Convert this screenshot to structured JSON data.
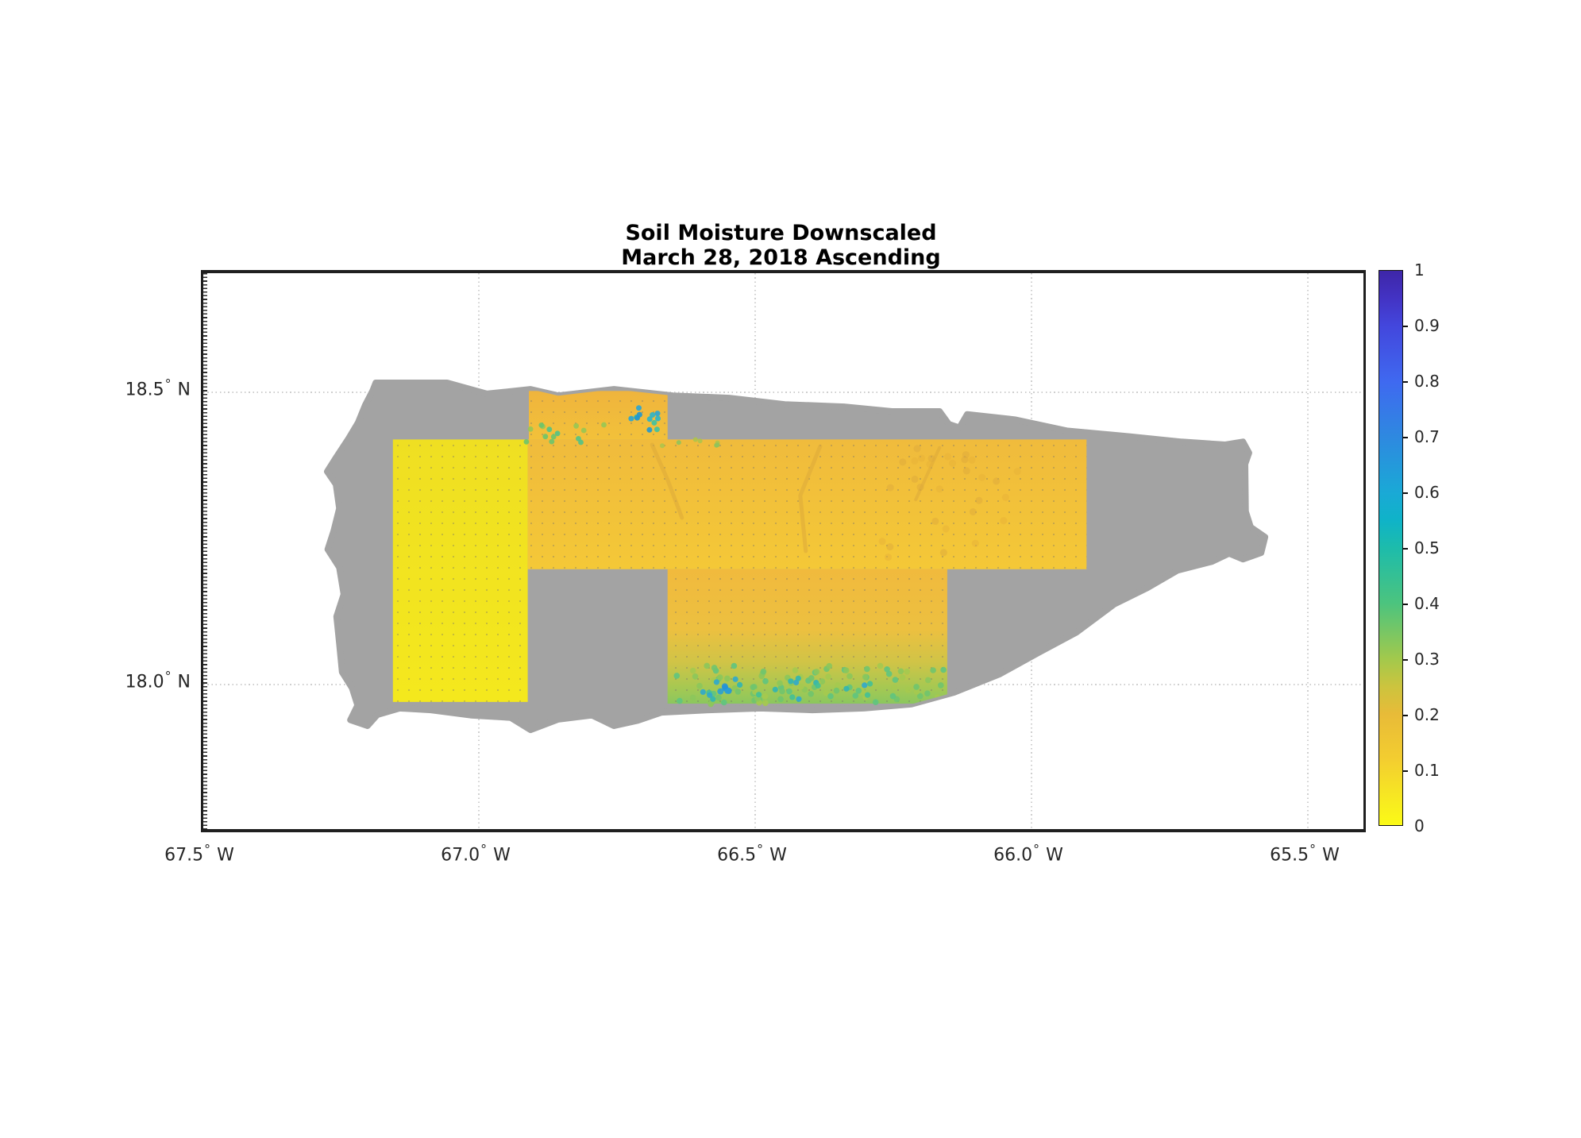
{
  "figure": {
    "title_line1": "Soil Moisture Downscaled",
    "title_line2": "March 28, 2018 Ascending"
  },
  "axes": {
    "x_ticks": [
      {
        "num": "67.5",
        "dir": "W",
        "lon": -67.5
      },
      {
        "num": "67.0",
        "dir": "W",
        "lon": -67.0
      },
      {
        "num": "66.5",
        "dir": "W",
        "lon": -66.5
      },
      {
        "num": "66.0",
        "dir": "W",
        "lon": -66.0
      },
      {
        "num": "65.5",
        "dir": "W",
        "lon": -65.5
      }
    ],
    "y_ticks": [
      {
        "num": "18.5",
        "dir": "N",
        "lat": 18.5
      },
      {
        "num": "18.0",
        "dir": "N",
        "lat": 18.0
      }
    ],
    "grid_style": "dotted",
    "grid_color": "#cfcfcf"
  },
  "colorbar": {
    "min": 0,
    "max": 1,
    "ticks": [
      {
        "label": "1",
        "v": 1.0
      },
      {
        "label": "0.9",
        "v": 0.9
      },
      {
        "label": "0.8",
        "v": 0.8
      },
      {
        "label": "0.7",
        "v": 0.7
      },
      {
        "label": "0.6",
        "v": 0.6
      },
      {
        "label": "0.5",
        "v": 0.5
      },
      {
        "label": "0.4",
        "v": 0.4
      },
      {
        "label": "0.3",
        "v": 0.3
      },
      {
        "label": "0.2",
        "v": 0.2
      },
      {
        "label": "0.1",
        "v": 0.1
      },
      {
        "label": "0",
        "v": 0.0
      }
    ],
    "gradient": [
      {
        "v": 1.0,
        "c": "#3e26a8"
      },
      {
        "v": 0.95,
        "c": "#4333c4"
      },
      {
        "v": 0.9,
        "c": "#4347dd"
      },
      {
        "v": 0.8,
        "c": "#3f69f0"
      },
      {
        "v": 0.7,
        "c": "#2e89e0"
      },
      {
        "v": 0.6,
        "c": "#1aa9d6"
      },
      {
        "v": 0.55,
        "c": "#0fb3c8"
      },
      {
        "v": 0.5,
        "c": "#1dbcab"
      },
      {
        "v": 0.4,
        "c": "#4cc47e"
      },
      {
        "v": 0.3,
        "c": "#a2c94c"
      },
      {
        "v": 0.25,
        "c": "#ccc43e"
      },
      {
        "v": 0.2,
        "c": "#e8bb38"
      },
      {
        "v": 0.12,
        "c": "#f3cd30"
      },
      {
        "v": 0.05,
        "c": "#f7e822"
      },
      {
        "v": 0.0,
        "c": "#fbfa16"
      }
    ]
  },
  "chart_data": {
    "type": "heatmap",
    "title": "Soil Moisture Downscaled",
    "subtitle": "March 28, 2018 Ascending",
    "value_range_shown": [
      0,
      1
    ],
    "lon_extent": [
      -67.503,
      -65.403
    ],
    "lat_extent": [
      17.753,
      18.702
    ],
    "nodata_island_color": "#a3a3a3",
    "island_outline_lonlat": [
      [
        -67.185,
        18.515
      ],
      [
        -67.056,
        18.515
      ],
      [
        -66.984,
        18.496
      ],
      [
        -66.905,
        18.504
      ],
      [
        -66.855,
        18.493
      ],
      [
        -66.754,
        18.504
      ],
      [
        -66.647,
        18.493
      ],
      [
        -66.546,
        18.489
      ],
      [
        -66.445,
        18.478
      ],
      [
        -66.338,
        18.474
      ],
      [
        -66.251,
        18.466
      ],
      [
        -66.165,
        18.466
      ],
      [
        -66.148,
        18.444
      ],
      [
        -66.129,
        18.438
      ],
      [
        -66.115,
        18.461
      ],
      [
        -66.029,
        18.452
      ],
      [
        -65.935,
        18.433
      ],
      [
        -65.82,
        18.423
      ],
      [
        -65.727,
        18.414
      ],
      [
        -65.648,
        18.409
      ],
      [
        -65.616,
        18.414
      ],
      [
        -65.605,
        18.395
      ],
      [
        -65.612,
        18.376
      ],
      [
        -65.611,
        18.295
      ],
      [
        -65.602,
        18.268
      ],
      [
        -65.576,
        18.251
      ],
      [
        -65.583,
        18.224
      ],
      [
        -65.616,
        18.213
      ],
      [
        -65.641,
        18.223
      ],
      [
        -65.672,
        18.209
      ],
      [
        -65.734,
        18.194
      ],
      [
        -65.789,
        18.164
      ],
      [
        -65.849,
        18.136
      ],
      [
        -65.917,
        18.088
      ],
      [
        -65.986,
        18.053
      ],
      [
        -66.057,
        18.016
      ],
      [
        -66.139,
        17.985
      ],
      [
        -66.216,
        17.965
      ],
      [
        -66.302,
        17.958
      ],
      [
        -66.395,
        17.955
      ],
      [
        -66.489,
        17.958
      ],
      [
        -66.582,
        17.955
      ],
      [
        -66.668,
        17.951
      ],
      [
        -66.711,
        17.937
      ],
      [
        -66.754,
        17.928
      ],
      [
        -66.794,
        17.946
      ],
      [
        -66.855,
        17.939
      ],
      [
        -66.905,
        17.921
      ],
      [
        -66.941,
        17.942
      ],
      [
        -67.013,
        17.946
      ],
      [
        -67.085,
        17.955
      ],
      [
        -67.142,
        17.958
      ],
      [
        -67.182,
        17.947
      ],
      [
        -67.2,
        17.928
      ],
      [
        -67.231,
        17.938
      ],
      [
        -67.218,
        17.963
      ],
      [
        -67.228,
        17.993
      ],
      [
        -67.246,
        18.02
      ],
      [
        -67.251,
        18.069
      ],
      [
        -67.256,
        18.115
      ],
      [
        -67.243,
        18.153
      ],
      [
        -67.251,
        18.199
      ],
      [
        -67.272,
        18.23
      ],
      [
        -67.261,
        18.262
      ],
      [
        -67.251,
        18.3
      ],
      [
        -67.257,
        18.341
      ],
      [
        -67.273,
        18.363
      ],
      [
        -67.257,
        18.387
      ],
      [
        -67.234,
        18.42
      ],
      [
        -67.217,
        18.447
      ],
      [
        -67.204,
        18.477
      ],
      [
        -67.191,
        18.501
      ]
    ],
    "swaths": [
      {
        "name": "west-swath",
        "lon": [
          -67.154,
          -66.91
        ],
        "lat": [
          17.969,
          18.418
        ],
        "approx_values": [
          0.0,
          0.08
        ],
        "fill_top": "#efdf22",
        "fill_bottom": "#f4e81d"
      },
      {
        "name": "north-band-swath",
        "lon": [
          -66.91,
          -65.899
        ],
        "lat": [
          18.196,
          18.418
        ],
        "approx_values": [
          0.12,
          0.22
        ],
        "fill_top": "#f0bb3c",
        "fill_bottom": "#f4c837"
      },
      {
        "name": "north-top-swath",
        "lon": [
          -66.908,
          -66.657
        ],
        "lat": [
          18.418,
          18.501
        ],
        "approx_values": [
          0.12,
          0.55
        ],
        "fill_top": "#efb43d",
        "fill_bottom": "#f2c13a"
      },
      {
        "name": "south-central-swath",
        "lon": [
          -66.657,
          -66.151
        ],
        "lat": [
          17.966,
          18.196
        ],
        "approx_values": [
          0.12,
          0.65
        ],
        "fill_stops": [
          {
            "p": 0,
            "c": "#f1ba3d"
          },
          {
            "p": 0.45,
            "c": "#ecc040"
          },
          {
            "p": 0.7,
            "c": "#cfc447"
          },
          {
            "p": 0.88,
            "c": "#a6c852"
          },
          {
            "p": 1,
            "c": "#8bc75e"
          }
        ]
      }
    ],
    "speckle_clusters": [
      {
        "name": "north-top-cyan",
        "lon": -66.695,
        "lat": 18.455,
        "dlon": 0.028,
        "dlat": 0.022,
        "count": 12,
        "r": 3.5,
        "approx_values": [
          0.5,
          0.65
        ],
        "colors": [
          "#29b5ca",
          "#28a5d5",
          "#3ec2a2",
          "#1f97d2"
        ]
      },
      {
        "name": "north-top-green",
        "lon": -66.82,
        "lat": 18.43,
        "dlon": 0.1,
        "dlat": 0.018,
        "count": 14,
        "r": 3.4,
        "approx_values": [
          0.3,
          0.4
        ],
        "colors": [
          "#6dc46b",
          "#97c754",
          "#52c287"
        ]
      },
      {
        "name": "band-top-green",
        "lon": -66.62,
        "lat": 18.413,
        "dlon": 0.06,
        "dlat": 0.006,
        "count": 7,
        "r": 3.0,
        "approx_values": [
          0.28,
          0.32
        ],
        "colors": [
          "#aec44a",
          "#8fc35b"
        ]
      },
      {
        "name": "south-coast-green-wash",
        "lon": -66.4,
        "lat": 17.998,
        "dlon": 0.245,
        "dlat": 0.033,
        "count": 95,
        "r": 3.8,
        "approx_values": [
          0.3,
          0.42
        ],
        "colors": [
          "#8cc75b",
          "#70c46e",
          "#a5c94f",
          "#5fc480"
        ]
      },
      {
        "name": "south-coast-teal",
        "lon": -66.44,
        "lat": 17.99,
        "dlon": 0.16,
        "dlat": 0.02,
        "count": 20,
        "r": 3.6,
        "approx_values": [
          0.45,
          0.55
        ],
        "colors": [
          "#31b5b3",
          "#2fa9cd",
          "#43c096"
        ]
      },
      {
        "name": "south-coast-blue",
        "lon": -66.555,
        "lat": 17.987,
        "dlon": 0.017,
        "dlat": 0.009,
        "count": 5,
        "r": 4.0,
        "approx_values": [
          0.6,
          0.68
        ],
        "colors": [
          "#2394da",
          "#2aa0d3"
        ]
      },
      {
        "name": "band-texture-darker",
        "lon": -66.15,
        "lat": 18.31,
        "dlon": 0.13,
        "dlat": 0.1,
        "count": 30,
        "r": 4.5,
        "approx_values": [
          0.18,
          0.22
        ],
        "colors": [
          "#e7b138",
          "#ddaa3c"
        ]
      }
    ],
    "streaks": [
      {
        "name": "river-streak-1",
        "pts": [
          [
            -66.685,
            18.409
          ],
          [
            -66.657,
            18.349
          ],
          [
            -66.631,
            18.284
          ]
        ],
        "c": "#dcaa3a",
        "w": 5
      },
      {
        "name": "river-streak-2",
        "pts": [
          [
            -66.381,
            18.406
          ],
          [
            -66.417,
            18.322
          ],
          [
            -66.407,
            18.227
          ]
        ],
        "c": "#dcaa3a",
        "w": 5
      },
      {
        "name": "river-streak-3",
        "pts": [
          [
            -66.165,
            18.404
          ],
          [
            -66.208,
            18.315
          ]
        ],
        "c": "#dcaa3a",
        "w": 4
      }
    ]
  }
}
